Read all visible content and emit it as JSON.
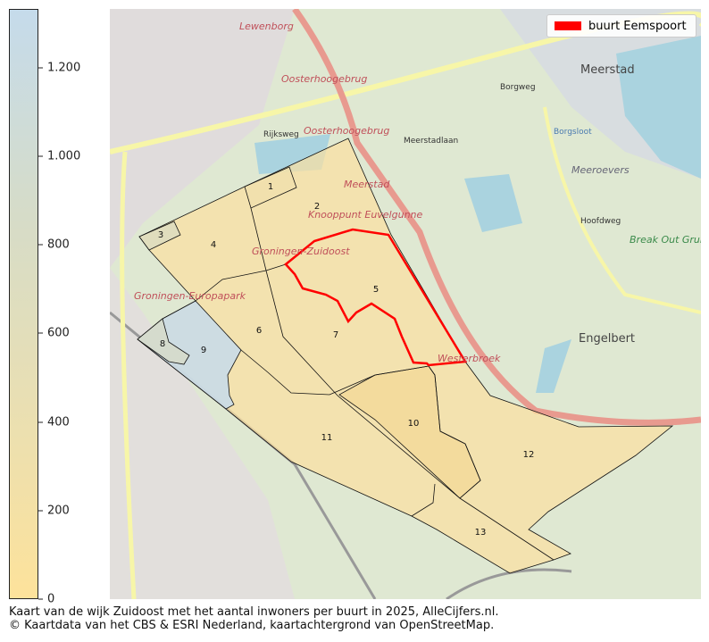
{
  "colorbar": {
    "ticks": [
      "0",
      "200",
      "400",
      "600",
      "800",
      "1.000",
      "1.200"
    ],
    "tick_values": [
      0,
      200,
      400,
      600,
      800,
      1000,
      1200
    ],
    "range": [
      0,
      1333
    ],
    "colors": {
      "low": "#fde29b",
      "high": "#c5dbeb"
    }
  },
  "legend": {
    "label": "buurt Eemspoort",
    "color": "#ff0000"
  },
  "map": {
    "buurten": [
      {
        "label": "1"
      },
      {
        "label": "2"
      },
      {
        "label": "3"
      },
      {
        "label": "4"
      },
      {
        "label": "5"
      },
      {
        "label": "6"
      },
      {
        "label": "7"
      },
      {
        "label": "8"
      },
      {
        "label": "9"
      },
      {
        "label": "10"
      },
      {
        "label": "11"
      },
      {
        "label": "12"
      },
      {
        "label": "13"
      }
    ],
    "place_names": [
      "Lewenborg",
      "Oosterhoogebrug",
      "Oosterhoogebrug",
      "Meerstad",
      "Meerstad",
      "Knooppunt Euvelgunne",
      "Groningen-Zuidoost",
      "Groningen-Europapark",
      "Westerbroek",
      "Meeroevers",
      "Engelbert",
      "Break Out Grunopark"
    ],
    "road_names": [
      "Rijksweg",
      "Meerstadlaan",
      "Borgweg",
      "Hoofdweg",
      "Borgsloot"
    ],
    "highlight_color": "#ff0000"
  },
  "caption": {
    "line1": "Kaart van de wijk Zuidoost met het aantal inwoners per buurt in 2025, AlleCijfers.nl.",
    "line2": "© Kaartdata van het CBS & ESRI Nederland, kaartachtergrond van OpenStreetMap."
  }
}
